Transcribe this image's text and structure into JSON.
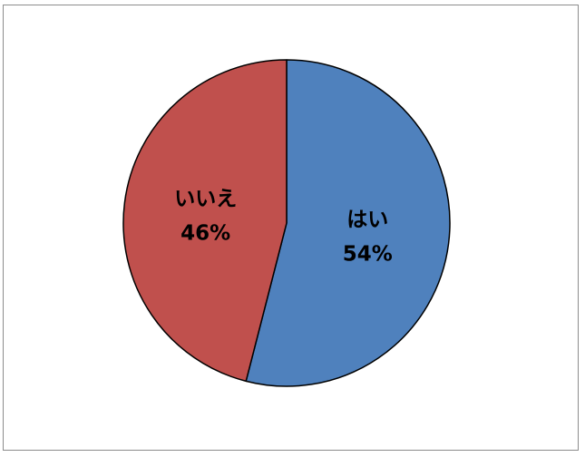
{
  "chart_data": {
    "type": "pie",
    "title": "",
    "slices": [
      {
        "label": "はい",
        "value": 54,
        "percent_text": "54%",
        "color": "#4F81BD"
      },
      {
        "label": "いいえ",
        "value": 46,
        "percent_text": "46%",
        "color": "#C0504D"
      }
    ],
    "start_angle_deg": 0,
    "direction": "clockwise",
    "legend": "none"
  }
}
